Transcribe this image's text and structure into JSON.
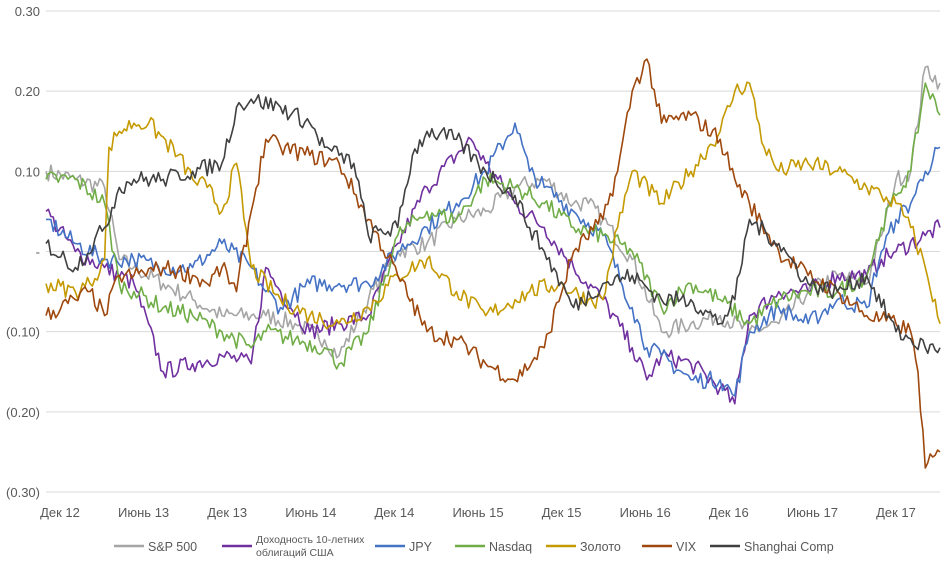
{
  "chart_data": {
    "type": "line",
    "ylim": [
      -0.3,
      0.3
    ],
    "y_ticks": [
      {
        "value": 0.3,
        "label": "0.30"
      },
      {
        "value": 0.2,
        "label": "0.20"
      },
      {
        "value": 0.1,
        "label": "0.10"
      },
      {
        "value": 0.0,
        "label": "-"
      },
      {
        "value": -0.1,
        "label": "(0.10)"
      },
      {
        "value": -0.2,
        "label": "(0.20)"
      },
      {
        "value": -0.3,
        "label": "(0.30)"
      }
    ],
    "x_ticks": [
      "Дек 12",
      "Июнь 13",
      "Дек 13",
      "Июнь 14",
      "Дек 14",
      "Июнь 15",
      "Дек 15",
      "Июнь 16",
      "Дек 16",
      "Июнь 17",
      "Дек 17"
    ],
    "x_range": [
      0,
      61
    ],
    "grid": "horizontal",
    "legend_position": "bottom",
    "series": [
      {
        "name": "S&P 500",
        "color": "#A5A5A5",
        "points": [
          [
            0,
            0.1
          ],
          [
            2,
            0.09
          ],
          [
            4,
            0.08
          ],
          [
            5,
            -0.01
          ],
          [
            6,
            -0.02
          ],
          [
            8,
            -0.04
          ],
          [
            10,
            -0.06
          ],
          [
            12,
            -0.08
          ],
          [
            14,
            -0.08
          ],
          [
            15,
            -0.08
          ],
          [
            17,
            -0.09
          ],
          [
            19,
            -0.11
          ],
          [
            20,
            -0.13
          ],
          [
            22,
            -0.06
          ],
          [
            24,
            0.0
          ],
          [
            26,
            0.01
          ],
          [
            28,
            0.04
          ],
          [
            30,
            0.05
          ],
          [
            32,
            0.08
          ],
          [
            34,
            0.09
          ],
          [
            36,
            0.06
          ],
          [
            37,
            0.06
          ],
          [
            38,
            0.04
          ],
          [
            40,
            -0.01
          ],
          [
            42,
            -0.1
          ],
          [
            44,
            -0.09
          ],
          [
            46,
            -0.08
          ],
          [
            48,
            -0.1
          ],
          [
            50,
            -0.09
          ],
          [
            52,
            -0.05
          ],
          [
            54,
            -0.03
          ],
          [
            56,
            -0.04
          ],
          [
            57,
            0.02
          ],
          [
            58,
            0.09
          ],
          [
            59,
            0.1
          ],
          [
            60,
            0.23
          ],
          [
            61,
            0.21
          ]
        ]
      },
      {
        "name": "Доходность 10-летних облигаций США",
        "color": "#7030A0",
        "points": [
          [
            0,
            0.05
          ],
          [
            2,
            0.0
          ],
          [
            4,
            -0.02
          ],
          [
            6,
            -0.04
          ],
          [
            8,
            -0.15
          ],
          [
            10,
            -0.14
          ],
          [
            12,
            -0.13
          ],
          [
            14,
            -0.14
          ],
          [
            15,
            -0.02
          ],
          [
            16,
            -0.05
          ],
          [
            18,
            -0.1
          ],
          [
            20,
            -0.09
          ],
          [
            22,
            -0.08
          ],
          [
            24,
            0.01
          ],
          [
            26,
            0.08
          ],
          [
            28,
            0.12
          ],
          [
            29,
            0.14
          ],
          [
            30,
            0.11
          ],
          [
            32,
            0.06
          ],
          [
            34,
            0.03
          ],
          [
            36,
            -0.02
          ],
          [
            38,
            -0.06
          ],
          [
            40,
            -0.12
          ],
          [
            41,
            -0.16
          ],
          [
            42,
            -0.13
          ],
          [
            44,
            -0.14
          ],
          [
            46,
            -0.17
          ],
          [
            47,
            -0.19
          ],
          [
            48,
            -0.08
          ],
          [
            50,
            -0.05
          ],
          [
            52,
            -0.05
          ],
          [
            54,
            -0.03
          ],
          [
            56,
            -0.03
          ],
          [
            57,
            -0.01
          ],
          [
            58,
            0.0
          ],
          [
            60,
            0.02
          ],
          [
            61,
            0.03
          ]
        ]
      },
      {
        "name": "JPY",
        "color": "#4472C4",
        "points": [
          [
            0,
            0.04
          ],
          [
            2,
            0.01
          ],
          [
            4,
            -0.01
          ],
          [
            6,
            -0.01
          ],
          [
            8,
            -0.02
          ],
          [
            10,
            -0.02
          ],
          [
            12,
            0.01
          ],
          [
            14,
            -0.02
          ],
          [
            15,
            -0.05
          ],
          [
            16,
            -0.07
          ],
          [
            18,
            -0.04
          ],
          [
            20,
            -0.04
          ],
          [
            22,
            -0.04
          ],
          [
            24,
            0.0
          ],
          [
            26,
            0.03
          ],
          [
            28,
            0.06
          ],
          [
            30,
            0.1
          ],
          [
            32,
            0.16
          ],
          [
            33,
            0.1
          ],
          [
            34,
            0.08
          ],
          [
            36,
            0.05
          ],
          [
            38,
            0.02
          ],
          [
            40,
            -0.07
          ],
          [
            41,
            -0.12
          ],
          [
            42,
            -0.13
          ],
          [
            44,
            -0.16
          ],
          [
            46,
            -0.16
          ],
          [
            47,
            -0.18
          ],
          [
            48,
            -0.1
          ],
          [
            50,
            -0.07
          ],
          [
            52,
            -0.09
          ],
          [
            54,
            -0.06
          ],
          [
            56,
            -0.07
          ],
          [
            57,
            0.0
          ],
          [
            58,
            0.04
          ],
          [
            59,
            0.06
          ],
          [
            60,
            0.1
          ],
          [
            61,
            0.13
          ]
        ]
      },
      {
        "name": "Nasdaq",
        "color": "#70AD47",
        "points": [
          [
            0,
            0.09
          ],
          [
            2,
            0.09
          ],
          [
            4,
            0.06
          ],
          [
            5,
            -0.04
          ],
          [
            6,
            -0.05
          ],
          [
            8,
            -0.07
          ],
          [
            10,
            -0.08
          ],
          [
            12,
            -0.1
          ],
          [
            14,
            -0.12
          ],
          [
            15,
            -0.1
          ],
          [
            17,
            -0.11
          ],
          [
            19,
            -0.12
          ],
          [
            20,
            -0.14
          ],
          [
            22,
            -0.1
          ],
          [
            24,
            0.02
          ],
          [
            26,
            0.05
          ],
          [
            28,
            0.04
          ],
          [
            30,
            0.09
          ],
          [
            32,
            0.08
          ],
          [
            34,
            0.06
          ],
          [
            36,
            0.03
          ],
          [
            38,
            0.02
          ],
          [
            40,
            0.0
          ],
          [
            42,
            -0.07
          ],
          [
            44,
            -0.04
          ],
          [
            46,
            -0.06
          ],
          [
            48,
            -0.09
          ],
          [
            50,
            -0.06
          ],
          [
            52,
            -0.05
          ],
          [
            54,
            -0.05
          ],
          [
            56,
            -0.03
          ],
          [
            57,
            0.03
          ],
          [
            58,
            0.07
          ],
          [
            59,
            0.1
          ],
          [
            60,
            0.21
          ],
          [
            61,
            0.17
          ]
        ]
      },
      {
        "name": "Золото",
        "color": "#C49A00",
        "points": [
          [
            0,
            -0.04
          ],
          [
            2,
            -0.05
          ],
          [
            3,
            -0.04
          ],
          [
            4,
            -0.01
          ],
          [
            4.3,
            0.13
          ],
          [
            5,
            0.15
          ],
          [
            6,
            0.16
          ],
          [
            7,
            0.16
          ],
          [
            9,
            0.12
          ],
          [
            10,
            0.09
          ],
          [
            11,
            0.08
          ],
          [
            12,
            0.05
          ],
          [
            13,
            0.11
          ],
          [
            14,
            -0.02
          ],
          [
            16,
            -0.06
          ],
          [
            18,
            -0.08
          ],
          [
            20,
            -0.09
          ],
          [
            22,
            -0.07
          ],
          [
            24,
            -0.03
          ],
          [
            26,
            -0.01
          ],
          [
            28,
            -0.05
          ],
          [
            30,
            -0.08
          ],
          [
            32,
            -0.06
          ],
          [
            33,
            -0.05
          ],
          [
            35,
            -0.04
          ],
          [
            37,
            -0.06
          ],
          [
            38,
            -0.06
          ],
          [
            39,
            0.03
          ],
          [
            40,
            0.1
          ],
          [
            42,
            0.06
          ],
          [
            44,
            0.1
          ],
          [
            46,
            0.15
          ],
          [
            47,
            0.2
          ],
          [
            48,
            0.21
          ],
          [
            49,
            0.13
          ],
          [
            50,
            0.1
          ],
          [
            52,
            0.11
          ],
          [
            54,
            0.1
          ],
          [
            56,
            0.08
          ],
          [
            57,
            0.07
          ],
          [
            58,
            0.06
          ],
          [
            59,
            0.03
          ],
          [
            60,
            -0.02
          ],
          [
            61,
            -0.09
          ]
        ]
      },
      {
        "name": "VIX",
        "color": "#9E480E",
        "points": [
          [
            0,
            -0.08
          ],
          [
            2,
            -0.06
          ],
          [
            3,
            -0.05
          ],
          [
            4,
            -0.08
          ],
          [
            5,
            -0.03
          ],
          [
            6,
            -0.03
          ],
          [
            8,
            -0.02
          ],
          [
            10,
            -0.03
          ],
          [
            11,
            -0.04
          ],
          [
            12,
            -0.02
          ],
          [
            13,
            -0.05
          ],
          [
            14,
            0.05
          ],
          [
            15,
            0.14
          ],
          [
            16,
            0.13
          ],
          [
            18,
            0.12
          ],
          [
            20,
            0.11
          ],
          [
            22,
            0.04
          ],
          [
            24,
            -0.03
          ],
          [
            26,
            -0.1
          ],
          [
            28,
            -0.11
          ],
          [
            30,
            -0.14
          ],
          [
            32,
            -0.16
          ],
          [
            34,
            -0.12
          ],
          [
            36,
            0.0
          ],
          [
            38,
            0.04
          ],
          [
            39,
            0.1
          ],
          [
            40,
            0.2
          ],
          [
            41,
            0.24
          ],
          [
            42,
            0.16
          ],
          [
            44,
            0.17
          ],
          [
            46,
            0.14
          ],
          [
            47,
            0.09
          ],
          [
            48,
            0.06
          ],
          [
            50,
            0.0
          ],
          [
            52,
            -0.03
          ],
          [
            54,
            -0.05
          ],
          [
            56,
            -0.08
          ],
          [
            58,
            -0.09
          ],
          [
            59,
            -0.1
          ],
          [
            59.5,
            -0.15
          ],
          [
            60,
            -0.27
          ],
          [
            61,
            -0.25
          ]
        ]
      },
      {
        "name": "Shanghai Comp",
        "color": "#404040",
        "points": [
          [
            0,
            0.01
          ],
          [
            2,
            -0.02
          ],
          [
            4,
            0.03
          ],
          [
            5,
            0.08
          ],
          [
            6,
            0.09
          ],
          [
            8,
            0.09
          ],
          [
            10,
            0.1
          ],
          [
            12,
            0.11
          ],
          [
            13,
            0.18
          ],
          [
            14,
            0.19
          ],
          [
            16,
            0.18
          ],
          [
            18,
            0.16
          ],
          [
            19,
            0.13
          ],
          [
            20,
            0.12
          ],
          [
            21,
            0.11
          ],
          [
            22,
            0.02
          ],
          [
            24,
            0.03
          ],
          [
            25,
            0.12
          ],
          [
            26,
            0.15
          ],
          [
            28,
            0.14
          ],
          [
            30,
            0.1
          ],
          [
            32,
            0.07
          ],
          [
            33,
            0.03
          ],
          [
            34,
            0.0
          ],
          [
            36,
            -0.07
          ],
          [
            38,
            -0.04
          ],
          [
            40,
            -0.03
          ],
          [
            42,
            -0.06
          ],
          [
            44,
            -0.06
          ],
          [
            46,
            -0.09
          ],
          [
            47,
            -0.06
          ],
          [
            48,
            0.04
          ],
          [
            50,
            0.01
          ],
          [
            52,
            -0.04
          ],
          [
            54,
            -0.05
          ],
          [
            56,
            -0.03
          ],
          [
            58,
            -0.1
          ],
          [
            60,
            -0.12
          ],
          [
            61,
            -0.12
          ]
        ]
      }
    ]
  }
}
